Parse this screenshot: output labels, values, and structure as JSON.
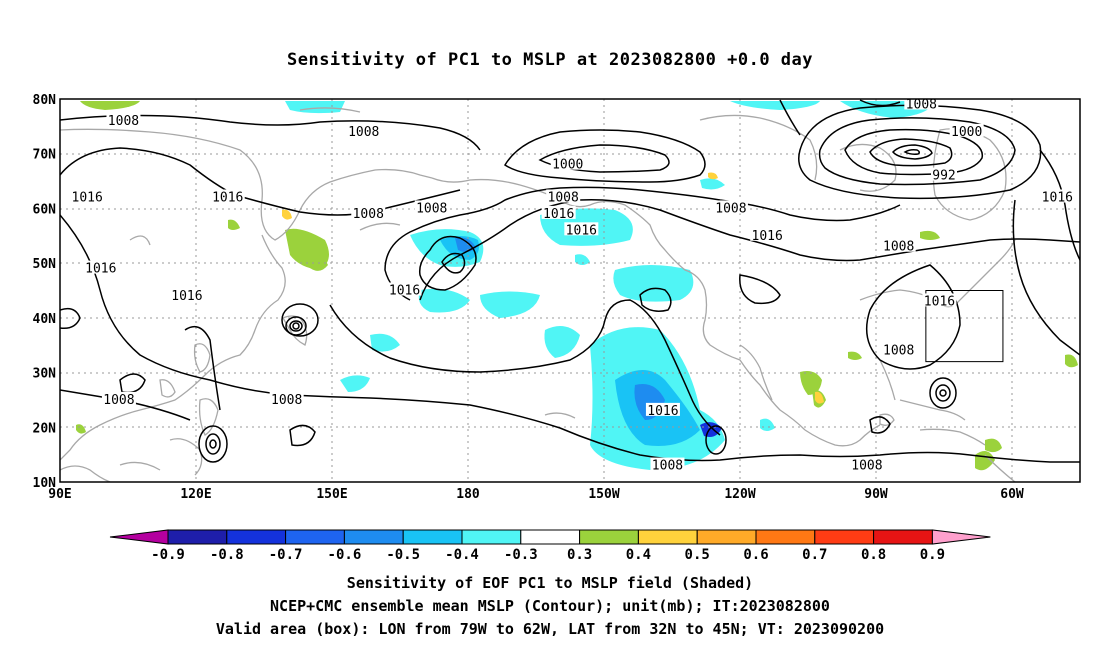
{
  "title": "Sensitivity of PC1 to MSLP at 2023082800 +0.0 day",
  "captions": {
    "line1": "Sensitivity of EOF PC1 to MSLP field (Shaded)",
    "line2": "NCEP+CMC ensemble mean MSLP (Contour); unit(mb); IT:2023082800",
    "line3": "Valid area (box): LON from 79W to 62W, LAT from 32N to 45N; VT: 2023090200"
  },
  "map": {
    "lat_labels": [
      "80N",
      "70N",
      "60N",
      "50N",
      "40N",
      "30N",
      "20N",
      "10N"
    ],
    "lon_labels": [
      "90E",
      "120E",
      "150E",
      "180",
      "150W",
      "120W",
      "90W",
      "60W"
    ],
    "valid_box": {
      "lon_min": -79,
      "lon_max": -62,
      "lat_min": 32,
      "lat_max": 45
    },
    "contour_labels": [
      {
        "text": "1008",
        "lon": 104,
        "lat": 76
      },
      {
        "text": "1008",
        "lon": 157,
        "lat": 74
      },
      {
        "text": "1016",
        "lon": 96,
        "lat": 62
      },
      {
        "text": "1016",
        "lon": 127,
        "lat": 62
      },
      {
        "text": "1008",
        "lon": 158,
        "lat": 59
      },
      {
        "text": "1008",
        "lon": 172,
        "lat": 60
      },
      {
        "text": "1000",
        "lon": -158,
        "lat": 68
      },
      {
        "text": "1008",
        "lon": -159,
        "lat": 62
      },
      {
        "text": "1016",
        "lon": -160,
        "lat": 59
      },
      {
        "text": "1016",
        "lon": -155,
        "lat": 56
      },
      {
        "text": "1008",
        "lon": -122,
        "lat": 60
      },
      {
        "text": "1016",
        "lon": -114,
        "lat": 55
      },
      {
        "text": "1008",
        "lon": -80,
        "lat": 79
      },
      {
        "text": "1000",
        "lon": -70,
        "lat": 74
      },
      {
        "text": "992",
        "lon": -75,
        "lat": 66
      },
      {
        "text": "1016",
        "lon": -50,
        "lat": 62
      },
      {
        "text": "1008",
        "lon": -85,
        "lat": 53
      },
      {
        "text": "1016",
        "lon": 99,
        "lat": 49
      },
      {
        "text": "1016",
        "lon": 118,
        "lat": 44
      },
      {
        "text": "1016",
        "lon": 166,
        "lat": 45
      },
      {
        "text": "1016",
        "lon": -76,
        "lat": 43
      },
      {
        "text": "1008",
        "lon": -85,
        "lat": 34
      },
      {
        "text": "1008",
        "lon": 103,
        "lat": 25
      },
      {
        "text": "1008",
        "lon": 140,
        "lat": 25
      },
      {
        "text": "1016",
        "lon": -137,
        "lat": 23
      },
      {
        "text": "1008",
        "lon": -136,
        "lat": 13
      },
      {
        "text": "1008",
        "lon": -92,
        "lat": 13
      }
    ]
  },
  "colorbar": {
    "labels": [
      "-0.9",
      "-0.8",
      "-0.7",
      "-0.6",
      "-0.5",
      "-0.4",
      "-0.3",
      "0.3",
      "0.4",
      "0.5",
      "0.6",
      "0.7",
      "0.8",
      "0.9"
    ],
    "colors": [
      "#b4009f",
      "#1e1eaa",
      "#1432dc",
      "#1e64f0",
      "#1e8cf0",
      "#19c3f5",
      "#50f5f5",
      "#ffffff",
      "#9bd23c",
      "#ffd23c",
      "#ffaa28",
      "#ff7814",
      "#ff3c14",
      "#e61414",
      "#ffa0cd"
    ]
  }
}
